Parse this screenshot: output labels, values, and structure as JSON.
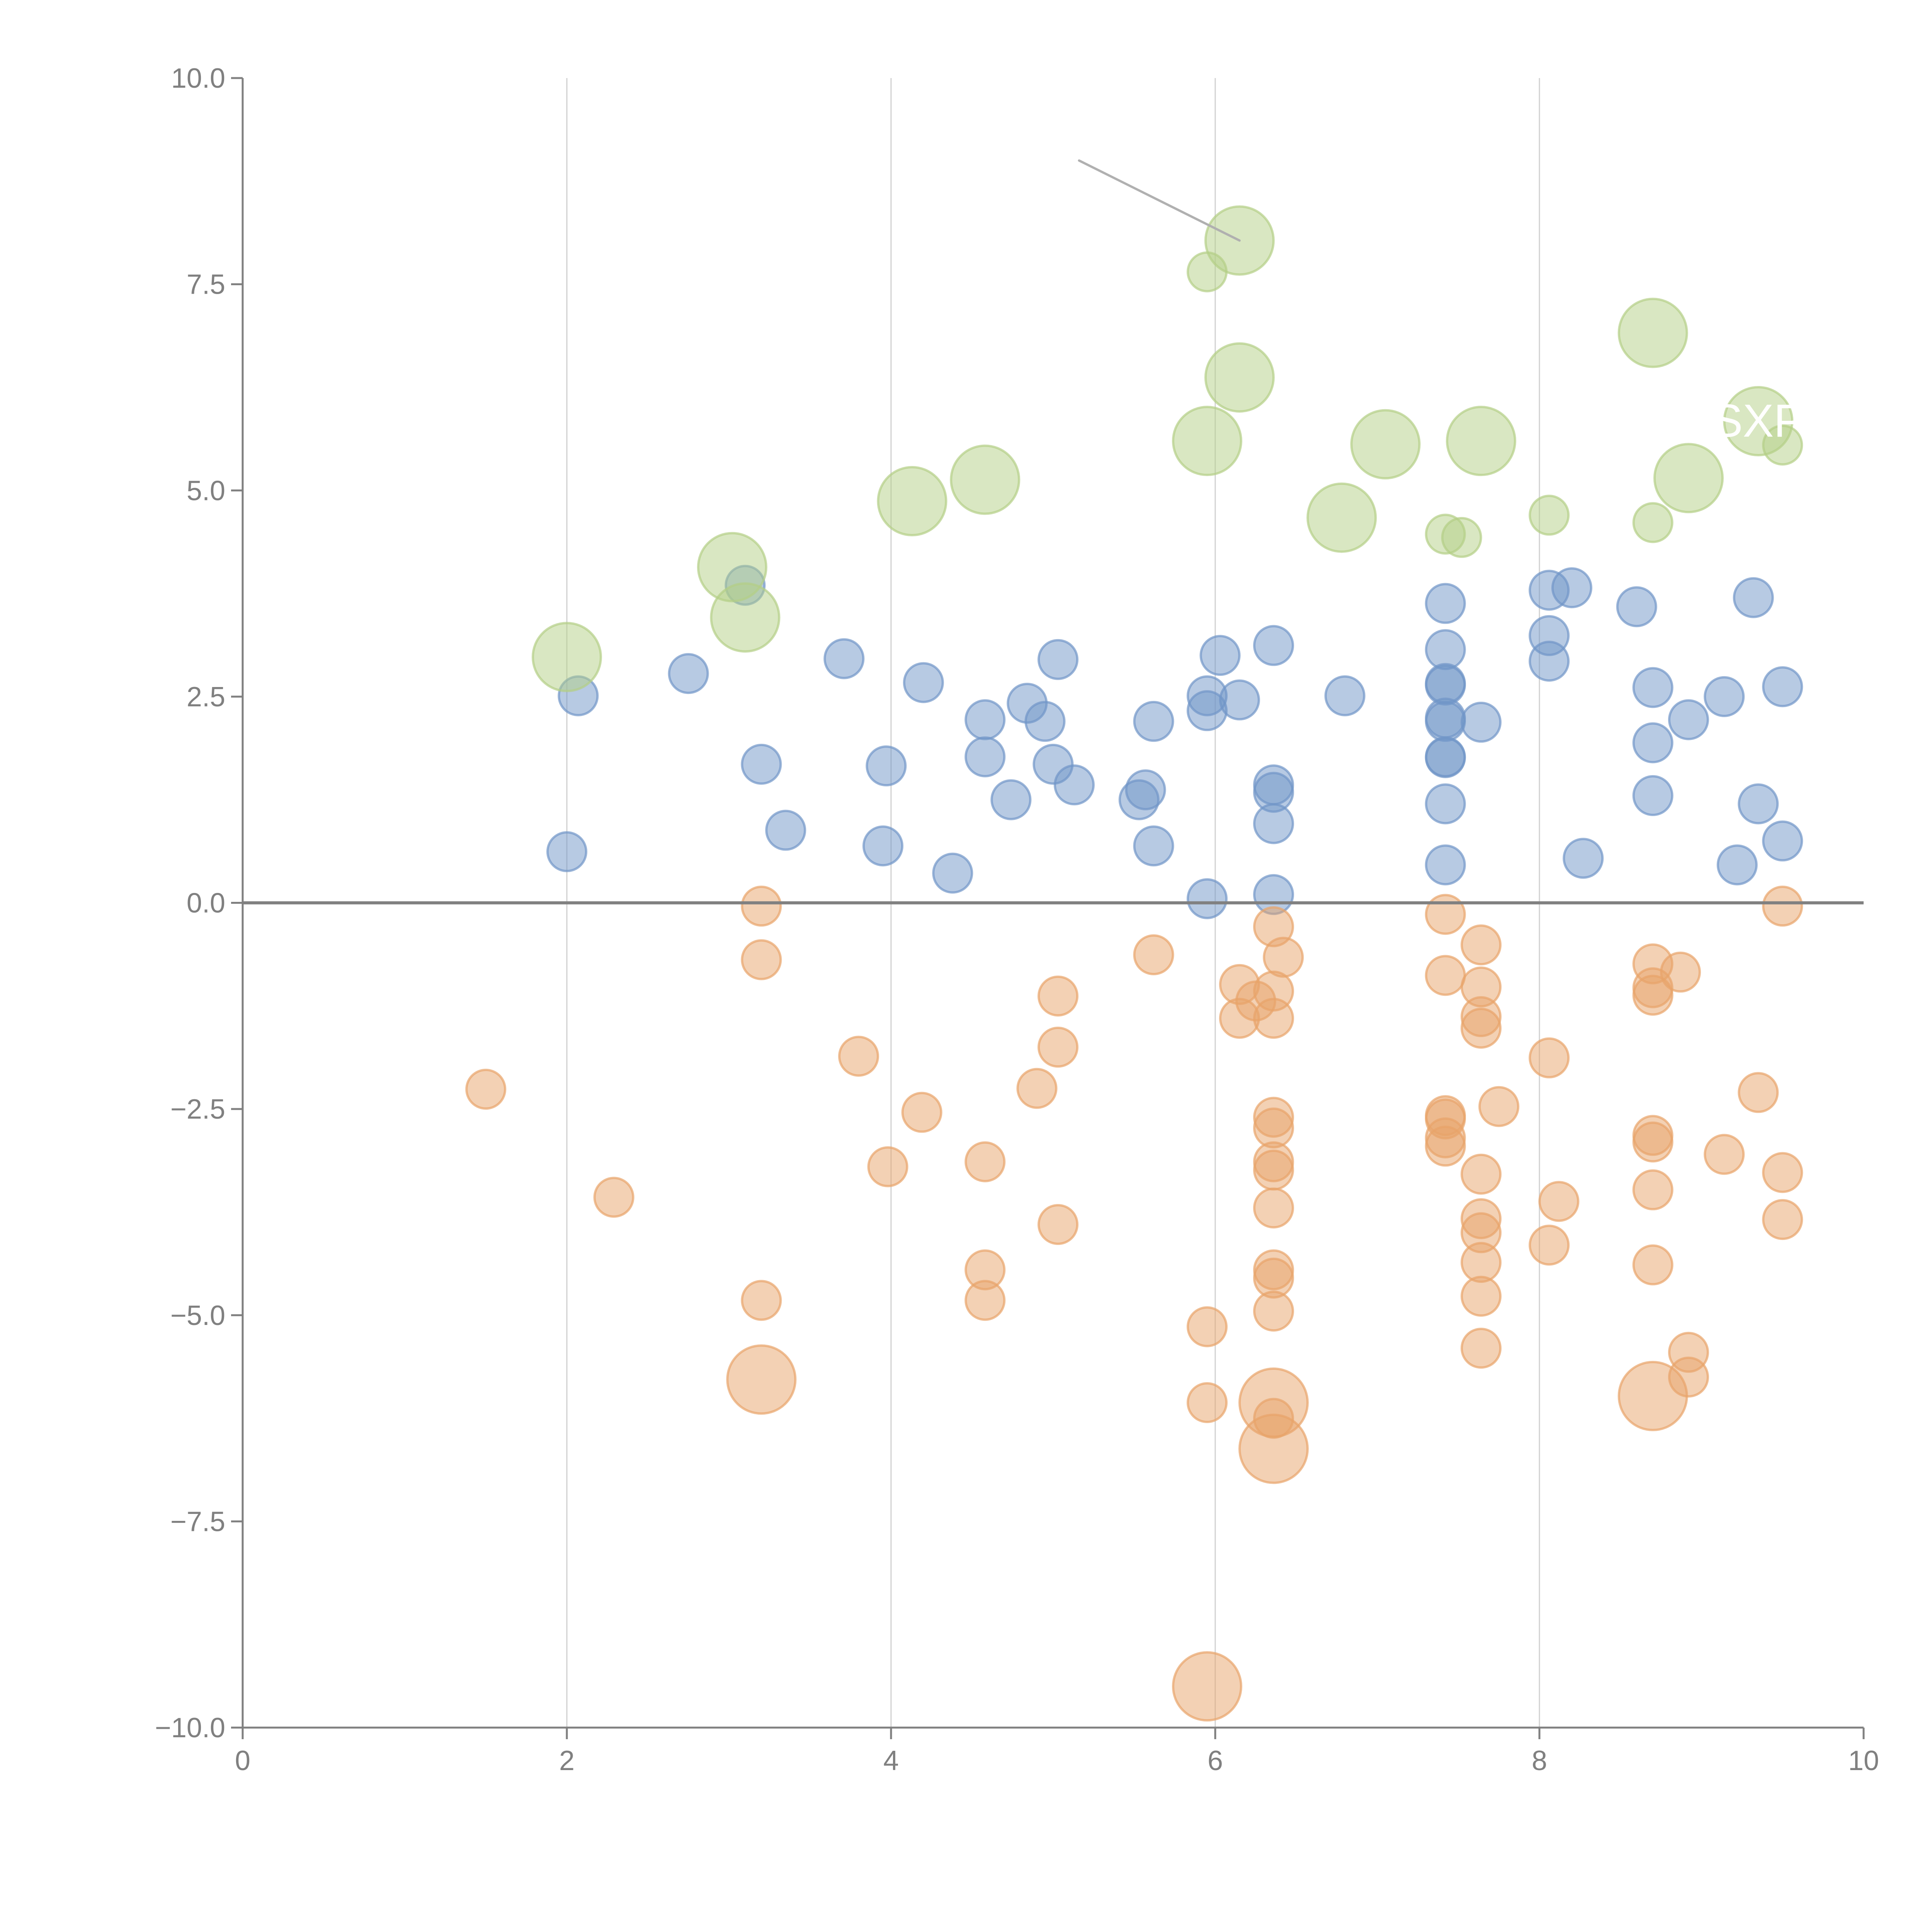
{
  "chart_data": {
    "type": "scatter",
    "subtype": "bubble",
    "title": "",
    "xlabel": "",
    "ylabel": "",
    "xlim": [
      0,
      10
    ],
    "ylim": [
      -10,
      10
    ],
    "x_ticks": [
      "0",
      "2",
      "4",
      "6",
      "8",
      "10"
    ],
    "y_ticks": [
      "−10.0",
      "−7.5",
      "−5.0",
      "−2.5",
      "0.0",
      "2.5",
      "5.0",
      "7.5",
      "10.0"
    ],
    "x_tick_values": [
      0,
      2,
      4,
      6,
      8,
      10
    ],
    "y_tick_values": [
      -10,
      -7.5,
      -5,
      -2.5,
      0,
      2.5,
      5,
      7.5,
      10
    ],
    "grid": "vertical",
    "zero_line": true,
    "legend": "none",
    "colors": {
      "blue": "#7096c8",
      "orange": "#e8a46a",
      "green": "#b4cf86",
      "axis": "#808080",
      "grid": "#d0d0d0",
      "leader": "#b0b0b0"
    },
    "series": [
      {
        "name": "blue",
        "size": "small",
        "points": [
          [
            2.07,
            2.51
          ],
          [
            2.0,
            0.62
          ],
          [
            2.75,
            2.78
          ],
          [
            3.1,
            3.85
          ],
          [
            3.2,
            1.68
          ],
          [
            3.35,
            0.88
          ],
          [
            3.71,
            2.96
          ],
          [
            3.95,
            0.69
          ],
          [
            3.97,
            1.66
          ],
          [
            4.2,
            2.67
          ],
          [
            4.38,
            0.36
          ],
          [
            4.58,
            2.22
          ],
          [
            4.58,
            1.77
          ],
          [
            4.74,
            1.25
          ],
          [
            4.84,
            2.42
          ],
          [
            4.95,
            2.2
          ],
          [
            5.03,
            2.95
          ],
          [
            5.0,
            1.68
          ],
          [
            5.13,
            1.43
          ],
          [
            5.53,
            1.25
          ],
          [
            5.57,
            1.37
          ],
          [
            5.62,
            2.2
          ],
          [
            5.62,
            0.69
          ],
          [
            5.95,
            2.51
          ],
          [
            5.95,
            2.33
          ],
          [
            5.95,
            0.05
          ],
          [
            6.03,
            3.0
          ],
          [
            6.15,
            2.46
          ],
          [
            6.36,
            3.12
          ],
          [
            6.36,
            1.43
          ],
          [
            6.36,
            1.34
          ],
          [
            6.36,
            0.96
          ],
          [
            6.36,
            0.1
          ],
          [
            6.8,
            2.51
          ],
          [
            7.42,
            3.63
          ],
          [
            7.42,
            3.07
          ],
          [
            7.42,
            2.66
          ],
          [
            7.42,
            2.64
          ],
          [
            7.42,
            2.24
          ],
          [
            7.42,
            2.2
          ],
          [
            7.42,
            1.77
          ],
          [
            7.42,
            1.76
          ],
          [
            7.42,
            1.2
          ],
          [
            7.42,
            0.46
          ],
          [
            7.64,
            2.19
          ],
          [
            8.06,
            3.79
          ],
          [
            8.06,
            3.24
          ],
          [
            8.06,
            2.93
          ],
          [
            8.2,
            3.82
          ],
          [
            8.27,
            0.54
          ],
          [
            8.6,
            3.59
          ],
          [
            8.7,
            2.61
          ],
          [
            8.7,
            1.94
          ],
          [
            8.7,
            1.3
          ],
          [
            8.92,
            2.22
          ],
          [
            9.14,
            2.5
          ],
          [
            9.22,
            0.46
          ],
          [
            9.32,
            3.7
          ],
          [
            9.35,
            1.2
          ],
          [
            9.5,
            2.62
          ],
          [
            9.5,
            0.75
          ]
        ]
      },
      {
        "name": "orange",
        "size": "small",
        "points": [
          [
            1.5,
            -2.26
          ],
          [
            2.29,
            -3.57
          ],
          [
            3.2,
            -0.04
          ],
          [
            3.2,
            -0.69
          ],
          [
            3.2,
            -4.82
          ],
          [
            3.8,
            -1.86
          ],
          [
            3.98,
            -3.2
          ],
          [
            4.19,
            -2.54
          ],
          [
            4.58,
            -3.14
          ],
          [
            4.58,
            -4.45
          ],
          [
            4.58,
            -4.82
          ],
          [
            4.9,
            -2.25
          ],
          [
            5.03,
            -1.13
          ],
          [
            5.03,
            -1.75
          ],
          [
            5.03,
            -3.9
          ],
          [
            5.62,
            -0.63
          ],
          [
            5.95,
            -5.14
          ],
          [
            5.95,
            -6.06
          ],
          [
            6.15,
            -0.99
          ],
          [
            6.15,
            -1.4
          ],
          [
            6.25,
            -1.19
          ],
          [
            6.36,
            -0.29
          ],
          [
            6.42,
            -0.66
          ],
          [
            6.36,
            -1.07
          ],
          [
            6.36,
            -1.4
          ],
          [
            6.36,
            -2.6
          ],
          [
            6.36,
            -2.73
          ],
          [
            6.36,
            -3.14
          ],
          [
            6.36,
            -3.24
          ],
          [
            6.36,
            -3.7
          ],
          [
            6.36,
            -4.45
          ],
          [
            6.36,
            -4.55
          ],
          [
            6.36,
            -4.95
          ],
          [
            6.36,
            -6.25
          ],
          [
            7.42,
            -0.14
          ],
          [
            7.42,
            -0.88
          ],
          [
            7.42,
            -2.58
          ],
          [
            7.42,
            -2.62
          ],
          [
            7.42,
            -2.85
          ],
          [
            7.42,
            -2.95
          ],
          [
            7.64,
            -0.51
          ],
          [
            7.64,
            -1.02
          ],
          [
            7.64,
            -1.38
          ],
          [
            7.64,
            -1.52
          ],
          [
            7.64,
            -3.29
          ],
          [
            7.64,
            -3.83
          ],
          [
            7.64,
            -4.0
          ],
          [
            7.64,
            -4.36
          ],
          [
            7.64,
            -4.77
          ],
          [
            7.64,
            -5.4
          ],
          [
            7.75,
            -2.47
          ],
          [
            8.06,
            -1.88
          ],
          [
            8.06,
            -4.15
          ],
          [
            8.12,
            -3.62
          ],
          [
            8.7,
            -0.74
          ],
          [
            8.7,
            -1.03
          ],
          [
            8.7,
            -1.12
          ],
          [
            8.7,
            -2.82
          ],
          [
            8.7,
            -2.9
          ],
          [
            8.7,
            -3.48
          ],
          [
            8.7,
            -4.39
          ],
          [
            8.87,
            -0.84
          ],
          [
            8.92,
            -5.45
          ],
          [
            8.92,
            -5.75
          ],
          [
            9.14,
            -3.05
          ],
          [
            9.35,
            -2.3
          ],
          [
            9.5,
            -0.04
          ],
          [
            9.5,
            -3.27
          ],
          [
            9.5,
            -3.84
          ]
        ]
      },
      {
        "name": "orange-large",
        "size": "large",
        "points": [
          [
            3.2,
            -5.78
          ],
          [
            6.36,
            -6.06
          ],
          [
            6.36,
            -6.62
          ],
          [
            5.95,
            -9.5
          ],
          [
            8.7,
            -5.98
          ]
        ]
      },
      {
        "name": "green",
        "size": "large",
        "points": [
          [
            2.0,
            2.98
          ],
          [
            3.02,
            4.07
          ],
          [
            3.1,
            3.46
          ],
          [
            4.13,
            4.87
          ],
          [
            4.58,
            5.13
          ],
          [
            5.95,
            5.6
          ],
          [
            6.15,
            8.03
          ],
          [
            6.15,
            6.37
          ],
          [
            6.78,
            4.67
          ],
          [
            7.05,
            5.56
          ],
          [
            7.64,
            5.6
          ],
          [
            8.7,
            6.91
          ],
          [
            8.92,
            5.15
          ],
          [
            9.35,
            5.84
          ]
        ]
      },
      {
        "name": "green-small",
        "size": "small",
        "points": [
          [
            5.95,
            7.65
          ],
          [
            7.42,
            4.47
          ],
          [
            7.52,
            4.43
          ],
          [
            8.06,
            4.7
          ],
          [
            8.7,
            4.61
          ],
          [
            9.5,
            5.55
          ]
        ]
      }
    ],
    "annotations": [
      {
        "text": "SXP",
        "x": 9.35,
        "y": 5.84,
        "color": "white"
      }
    ]
  }
}
